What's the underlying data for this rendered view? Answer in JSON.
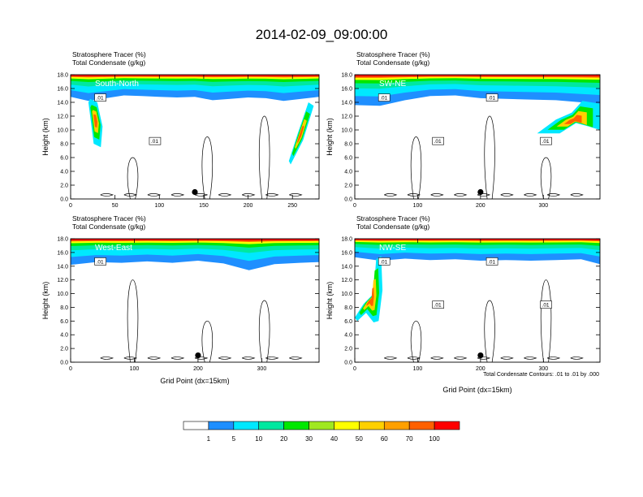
{
  "figure": {
    "title": "2014-02-09_09:00:00",
    "footnote": "Total Condensate Contours: .01 to .01 by .000"
  },
  "colorbar": {
    "levels": [
      "1",
      "5",
      "10",
      "20",
      "30",
      "40",
      "50",
      "60",
      "70",
      "100"
    ],
    "colors": [
      "#ffffff",
      "#1f8fff",
      "#00e8ff",
      "#00e8a0",
      "#00e800",
      "#a0e820",
      "#ffff00",
      "#ffd000",
      "#ffa000",
      "#ff6000",
      "#ff0000"
    ]
  },
  "chart_data": [
    {
      "type": "heatmap",
      "panel_label": "South-North",
      "header_lines": [
        "Stratosphere Tracer   (%)",
        "Total Condensate   (g/kg)"
      ],
      "xlabel": "",
      "ylabel": "Height (km)",
      "xlim": [
        0,
        280
      ],
      "ylim": [
        0,
        18
      ],
      "x_ticks": [
        0,
        50,
        100,
        150,
        200,
        250
      ],
      "y_ticks": [
        "0.0",
        "2.0",
        "4.0",
        "6.0",
        "8.0",
        "10.0",
        "12.0",
        "14.0",
        "16.0",
        "18.0"
      ],
      "tracer_boundary": {
        "x": [
          0,
          20,
          40,
          60,
          80,
          100,
          120,
          140,
          160,
          180,
          200,
          220,
          240,
          260,
          280
        ],
        "height_km": [
          14.8,
          14.2,
          14.6,
          15.0,
          14.9,
          14.8,
          14.7,
          14.8,
          14.3,
          14.5,
          14.7,
          14.6,
          14.2,
          14.5,
          14.8
        ]
      },
      "tracer_intrusions": [
        {
          "x": [
            248,
            262,
            274,
            268,
            256,
            246
          ],
          "height_km": [
            5.0,
            8.5,
            13.5,
            14.0,
            9.5,
            5.5
          ]
        },
        {
          "x": [
            20,
            26,
            34,
            36,
            30,
            22
          ],
          "height_km": [
            14.0,
            8.0,
            7.5,
            10.5,
            14.0,
            14.5
          ]
        }
      ],
      "condensate_labels": [
        ".01",
        ".01"
      ],
      "marker_x": 140
    },
    {
      "type": "heatmap",
      "panel_label": "SW-NE",
      "header_lines": [
        "Stratosphere Tracer   (%)",
        "Total Condensate   (g/kg)"
      ],
      "xlabel": "",
      "ylabel": "Height (km)",
      "xlim": [
        0,
        390
      ],
      "ylim": [
        0,
        18
      ],
      "x_ticks": [
        0,
        100,
        200,
        300
      ],
      "y_ticks": [
        "0.0",
        "2.0",
        "4.0",
        "6.0",
        "8.0",
        "10.0",
        "12.0",
        "14.0",
        "16.0",
        "18.0"
      ],
      "tracer_boundary": {
        "x": [
          0,
          40,
          80,
          120,
          160,
          200,
          240,
          280,
          320,
          360,
          390
        ],
        "height_km": [
          13.6,
          13.5,
          14.3,
          14.9,
          15.0,
          14.6,
          14.5,
          14.4,
          14.3,
          14.0,
          13.8
        ]
      },
      "tracer_intrusions": [
        {
          "x": [
            290,
            320,
            345,
            362,
            390,
            390,
            372,
            352,
            326
          ],
          "height_km": [
            9.5,
            11.5,
            12.5,
            14.2,
            13.8,
            10.0,
            10.5,
            11.0,
            9.5
          ]
        }
      ],
      "condensate_labels": [
        ".01",
        ".01",
        ".01",
        ".01"
      ],
      "marker_x": 200
    },
    {
      "type": "heatmap",
      "panel_label": "West-East",
      "header_lines": [
        "Stratosphere Tracer   (%)",
        "Total Condensate   (g/kg)"
      ],
      "xlabel": "Grid Point (dx=15km)",
      "ylabel": "Height (km)",
      "xlim": [
        0,
        390
      ],
      "ylim": [
        0,
        18
      ],
      "x_ticks": [
        0,
        100,
        200,
        300
      ],
      "y_ticks": [
        "0.0",
        "2.0",
        "4.0",
        "6.0",
        "8.0",
        "10.0",
        "12.0",
        "14.0",
        "16.0",
        "18.0"
      ],
      "tracer_boundary": {
        "x": [
          0,
          40,
          80,
          120,
          160,
          200,
          240,
          280,
          320,
          360,
          390
        ],
        "height_km": [
          14.2,
          14.6,
          14.5,
          14.7,
          14.5,
          14.8,
          14.4,
          13.4,
          14.3,
          14.5,
          14.6
        ]
      },
      "tracer_intrusions": [],
      "condensate_labels": [
        ".01"
      ],
      "marker_x": 200
    },
    {
      "type": "heatmap",
      "panel_label": "NW-SE",
      "header_lines": [
        "Stratosphere Tracer   (%)",
        "Total Condensate   (g/kg)"
      ],
      "xlabel": "Grid Point (dx=15km)",
      "ylabel": "Height (km)",
      "xlim": [
        0,
        390
      ],
      "ylim": [
        0,
        18
      ],
      "x_ticks": [
        0,
        100,
        200,
        300
      ],
      "y_ticks": [
        "0.0",
        "2.0",
        "4.0",
        "6.0",
        "8.0",
        "10.0",
        "12.0",
        "14.0",
        "16.0",
        "18.0"
      ],
      "tracer_boundary": {
        "x": [
          0,
          40,
          80,
          120,
          160,
          200,
          240,
          280,
          320,
          360,
          390
        ],
        "height_km": [
          15.3,
          14.8,
          15.1,
          14.9,
          15.0,
          14.8,
          14.9,
          14.8,
          14.9,
          15.0,
          14.3
        ]
      },
      "tracer_intrusions": [
        {
          "x": [
            0,
            14,
            30,
            34,
            42,
            44,
            38,
            30,
            18,
            4
          ],
          "height_km": [
            6.5,
            8.5,
            10.0,
            15.0,
            15.5,
            10.5,
            6.0,
            5.8,
            7.2,
            6.0
          ]
        }
      ],
      "condensate_labels": [
        ".01",
        ".01",
        ".01",
        ".01"
      ],
      "marker_x": 200
    }
  ]
}
